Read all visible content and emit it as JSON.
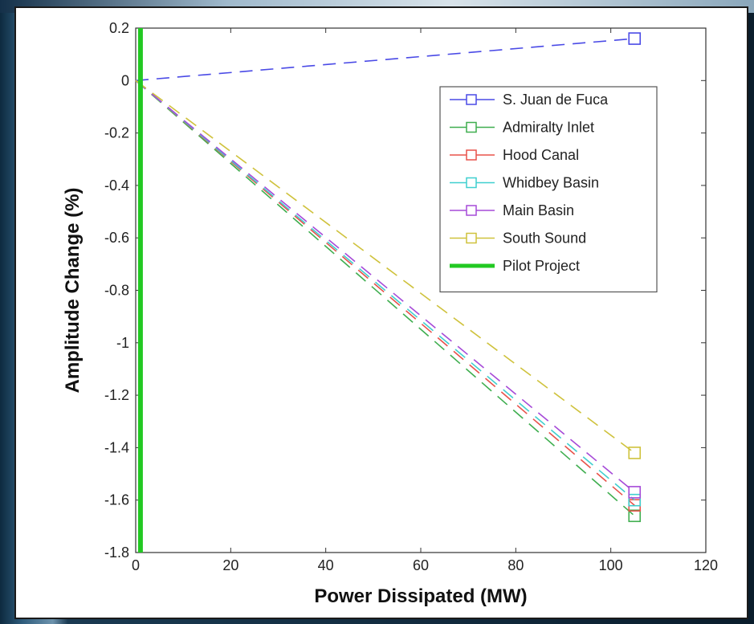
{
  "chart_data": {
    "type": "line",
    "title": "",
    "xlabel": "Power Dissipated (MW)",
    "ylabel": "Amplitude Change (%)",
    "xlim": [
      0,
      120
    ],
    "ylim": [
      -1.8,
      0.2
    ],
    "xticks": [
      0,
      20,
      40,
      60,
      80,
      100,
      120
    ],
    "xtick_labels": [
      "0",
      "20",
      "40",
      "60",
      "80",
      "100",
      "120"
    ],
    "yticks": [
      0.2,
      0,
      -0.2,
      -0.4,
      -0.6,
      -0.8,
      -1,
      -1.2,
      -1.4,
      -1.6,
      -1.8
    ],
    "ytick_labels": [
      "0.2",
      "0",
      "-0.2",
      "-0.4",
      "-0.6",
      "-0.8",
      "-1",
      "-1.2",
      "-1.4",
      "-1.6",
      "-1.8"
    ],
    "grid": false,
    "legend_position": "top-right",
    "series": [
      {
        "name": "S. Juan de Fuca",
        "color": "#4a4ae6",
        "x": [
          0,
          105
        ],
        "y": [
          0,
          0.16
        ]
      },
      {
        "name": "Admiralty Inlet",
        "color": "#3fae4f",
        "x": [
          0,
          105
        ],
        "y": [
          0,
          -1.66
        ]
      },
      {
        "name": "Hood Canal",
        "color": "#e8524a",
        "x": [
          0,
          105
        ],
        "y": [
          0,
          -1.62
        ]
      },
      {
        "name": "Whidbey Basin",
        "color": "#3fcfcf",
        "x": [
          0,
          105
        ],
        "y": [
          0,
          -1.6
        ]
      },
      {
        "name": "Main Basin",
        "color": "#a64ad8",
        "x": [
          0,
          105
        ],
        "y": [
          0,
          -1.57
        ]
      },
      {
        "name": "South Sound",
        "color": "#cfc23c",
        "x": [
          0,
          105
        ],
        "y": [
          0,
          -1.42
        ]
      },
      {
        "name": "Pilot Project",
        "color": "#22c922",
        "x": [
          1,
          1
        ],
        "y": [
          -1.8,
          0.2
        ],
        "style": "solid"
      }
    ]
  }
}
